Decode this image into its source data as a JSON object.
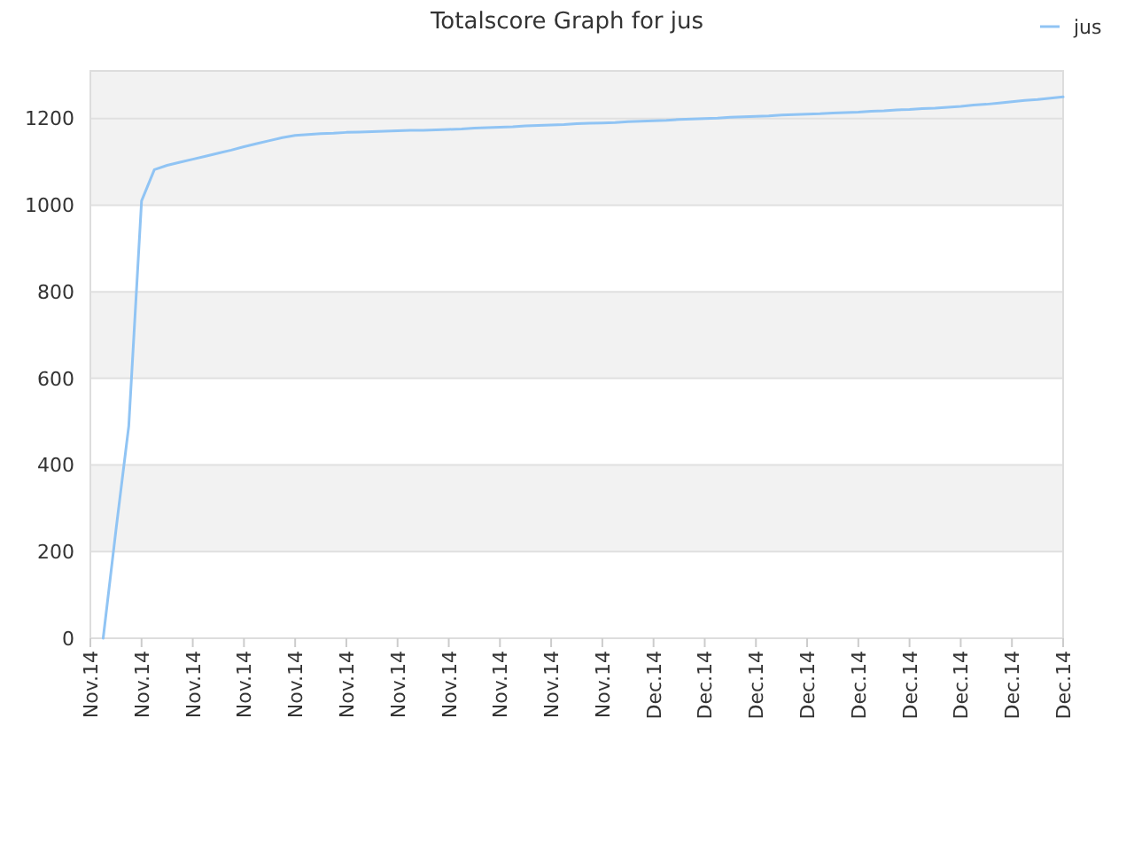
{
  "chart_data": {
    "type": "line",
    "title": "Totalscore Graph for jus",
    "categories": [
      "Nov.14",
      null,
      null,
      null,
      "Nov.14",
      null,
      null,
      null,
      "Nov.14",
      null,
      null,
      null,
      "Nov.14",
      null,
      null,
      null,
      "Nov.14",
      null,
      null,
      null,
      "Nov.14",
      null,
      null,
      null,
      "Nov.14",
      null,
      null,
      null,
      "Nov.14",
      null,
      null,
      null,
      "Nov.14",
      null,
      null,
      null,
      "Nov.14",
      null,
      null,
      null,
      "Nov.14",
      null,
      null,
      null,
      "Dec.14",
      null,
      null,
      null,
      "Dec.14",
      null,
      null,
      null,
      "Dec.14",
      null,
      null,
      null,
      "Dec.14",
      null,
      null,
      null,
      "Dec.14",
      null,
      null,
      null,
      "Dec.14",
      null,
      null,
      null,
      "Dec.14",
      null,
      null,
      null,
      "Dec.14",
      null,
      null,
      null,
      "Dec.14"
    ],
    "ylim": [
      0,
      1310
    ],
    "yticks": [
      0,
      200,
      400,
      600,
      800,
      1000,
      1200
    ],
    "grid": "y",
    "legend": "top right",
    "marker": "none",
    "line_style": "solid",
    "series": [
      {
        "name": "jus",
        "color": "#90c4f4",
        "values": [
          null,
          0,
          250,
          490,
          1010,
          1082,
          1092,
          1099,
          1106,
          1113,
          1120,
          1127,
          1135,
          1142,
          1149,
          1156,
          1161,
          1163,
          1165,
          1166,
          1168,
          1169,
          1170,
          1171,
          1172,
          1173,
          1173,
          1174,
          1175,
          1176,
          1178,
          1179,
          1180,
          1181,
          1183,
          1184,
          1185,
          1186,
          1188,
          1189,
          1190,
          1191,
          1193,
          1194,
          1195,
          1196,
          1198,
          1199,
          1200,
          1201,
          1203,
          1204,
          1205,
          1206,
          1208,
          1209,
          1210,
          1211,
          1213,
          1214,
          1215,
          1217,
          1218,
          1220,
          1221,
          1223,
          1224,
          1226,
          1228,
          1231,
          1233,
          1236,
          1239,
          1242,
          1244,
          1247,
          1250
        ]
      }
    ]
  }
}
